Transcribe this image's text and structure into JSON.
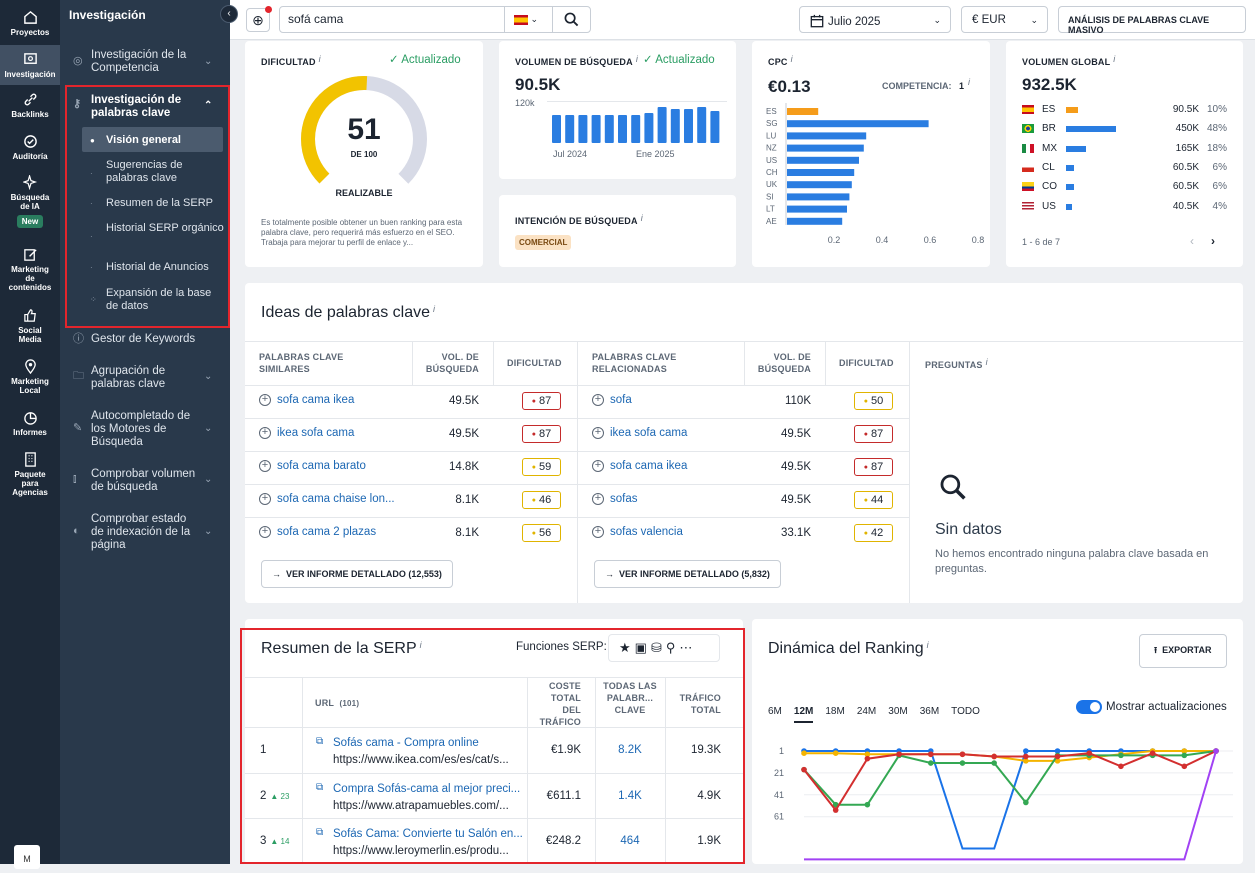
{
  "rail": {
    "items": [
      "Proyectos",
      "Investigación",
      "Backlinks",
      "Auditoría",
      "Búsqueda de IA",
      "Marketing de contenidos",
      "Social Media",
      "Marketing Local",
      "Informes",
      "Paquete para Agencias"
    ],
    "new_badge": "New",
    "avatar": "M"
  },
  "sidebar": {
    "title": "Investigación",
    "competencia": "Investigación de la Competencia",
    "palabras": "Investigación de palabras clave",
    "subs": [
      "Visión general",
      "Sugerencias de palabras clave",
      "Resumen de la SERP",
      "Historial SERP orgánico",
      "Historial de Anuncios",
      "Expansión de la base de datos"
    ],
    "gestor": "Gestor de Keywords",
    "agrupacion": "Agrupación de palabras clave",
    "autocompletado": "Autocompletado de los Motores de Búsqueda",
    "volumen": "Comprobar volumen de búsqueda",
    "indexacion": "Comprobar estado de indexación de la página"
  },
  "topbar": {
    "query": "sofá cama",
    "month": "Julio 2025",
    "currency": "€ EUR",
    "bulk": "ANÁLISIS DE PALABRAS CLAVE MASIVO"
  },
  "dificultad": {
    "label": "DIFICULTAD",
    "updated": "Actualizado",
    "score": "51",
    "de": "DE 100",
    "level": "REALIZABLE",
    "desc": "Es totalmente posible obtener un buen ranking para esta palabra clave, pero requerirá más esfuerzo en el SEO. Trabaja para mejorar tu perfil de enlace y...",
    "fraction": 0.51
  },
  "volumen": {
    "label": "VOLUMEN DE BÚSQUEDA",
    "updated": "Actualizado",
    "value": "90.5K",
    "ytick": "120k",
    "x1": "Jul 2024",
    "x2": "Ene 2025",
    "bars": [
      0.7,
      0.7,
      0.7,
      0.7,
      0.7,
      0.7,
      0.7,
      0.75,
      0.9,
      0.85,
      0.85,
      0.9,
      0.8
    ]
  },
  "intencion": {
    "label": "INTENCIÓN DE BÚSQUEDA",
    "tag": "COMERCIAL"
  },
  "cpc": {
    "label": "CPC",
    "value": "€0.13",
    "comp_label": "COMPETENCIA:",
    "comp_value": "1",
    "countries": [
      "ES",
      "SG",
      "LU",
      "NZ",
      "US",
      "CH",
      "UK",
      "SI",
      "LT",
      "AE"
    ],
    "values": [
      0.13,
      0.59,
      0.33,
      0.32,
      0.3,
      0.28,
      0.27,
      0.26,
      0.25,
      0.23
    ],
    "xticks": [
      "0.2",
      "0.4",
      "0.6",
      "0.8"
    ]
  },
  "global": {
    "label": "VOLUMEN GLOBAL",
    "value": "932.5K",
    "rows": [
      {
        "code": "ES",
        "vol": "90.5K",
        "pct": "10%",
        "f": 0.1
      },
      {
        "code": "BR",
        "vol": "450K",
        "pct": "48%",
        "f": 0.48
      },
      {
        "code": "MX",
        "vol": "165K",
        "pct": "18%",
        "f": 0.18
      },
      {
        "code": "CL",
        "vol": "60.5K",
        "pct": "6%",
        "f": 0.06
      },
      {
        "code": "CO",
        "vol": "60.5K",
        "pct": "6%",
        "f": 0.06
      },
      {
        "code": "US",
        "vol": "40.5K",
        "pct": "4%",
        "f": 0.04
      }
    ],
    "pager": "1 - 6 de 7"
  },
  "ideas": {
    "title": "Ideas de palabras clave",
    "h1": "PALABRAS CLAVE SIMILARES",
    "h2": "PALABRAS CLAVE RELACIONADAS",
    "hvol": "VOL. DE BÚSQUEDA",
    "hdif": "DIFICULTAD",
    "hpreg": "PREGUNTAS",
    "similares": [
      {
        "kw": "sofa cama ikea",
        "vol": "49.5K",
        "kd": "87",
        "c": "red"
      },
      {
        "kw": "ikea sofa cama",
        "vol": "49.5K",
        "kd": "87",
        "c": "red"
      },
      {
        "kw": "sofa cama barato",
        "vol": "14.8K",
        "kd": "59",
        "c": "yel"
      },
      {
        "kw": "sofa cama chaise lon...",
        "vol": "8.1K",
        "kd": "46",
        "c": "yel"
      },
      {
        "kw": "sofa cama 2 plazas",
        "vol": "8.1K",
        "kd": "56",
        "c": "yel"
      }
    ],
    "relacionadas": [
      {
        "kw": "sofa",
        "vol": "110K",
        "kd": "50",
        "c": "yel"
      },
      {
        "kw": "ikea sofa cama",
        "vol": "49.5K",
        "kd": "87",
        "c": "red"
      },
      {
        "kw": "sofa cama ikea",
        "vol": "49.5K",
        "kd": "87",
        "c": "red"
      },
      {
        "kw": "sofas",
        "vol": "49.5K",
        "kd": "44",
        "c": "yel"
      },
      {
        "kw": "sofas valencia",
        "vol": "33.1K",
        "kd": "42",
        "c": "yel"
      }
    ],
    "btn1": "VER INFORME DETALLADO (12,553)",
    "btn2": "VER INFORME DETALLADO (5,832)",
    "nodata": "Sin datos",
    "nodata_desc": "No hemos encontrado ninguna palabra clave basada en preguntas."
  },
  "serp": {
    "title": "Resumen de la SERP",
    "funciones": "Funciones SERP:",
    "h_url": "URL",
    "h_count": "(101)",
    "h_coste": "COSTE TOTAL DEL TRÁFICO",
    "h_todas": "TODAS LAS PALABR... CLAVE",
    "h_trafico": "TRÁFICO TOTAL",
    "rows": [
      {
        "pos": "1",
        "delta": "",
        "title": "Sofás cama - Compra online",
        "url": "https://www.ikea.com/es/es/cat/s...",
        "coste": "€1.9K",
        "kw": "8.2K",
        "traf": "19.3K"
      },
      {
        "pos": "2",
        "delta": "▲ 23",
        "title": "Compra Sofás-cama al mejor preci...",
        "url": "https://www.atrapamuebles.com/...",
        "coste": "€611.1",
        "kw": "1.4K",
        "traf": "4.9K"
      },
      {
        "pos": "3",
        "delta": "▲ 14",
        "title": "Sofás Cama: Convierte tu Salón en...",
        "url": "https://www.leroymerlin.es/produ...",
        "coste": "€248.2",
        "kw": "464",
        "traf": "1.9K"
      }
    ]
  },
  "ranking": {
    "title": "Dinámica del Ranking",
    "export": "EXPORTAR",
    "tabs": [
      "6M",
      "12M",
      "18M",
      "24M",
      "30M",
      "36M",
      "TODO"
    ],
    "toggle": "Mostrar actualizaciones",
    "yticks": [
      "1",
      "21",
      "41",
      "61"
    ],
    "series": [
      {
        "color": "#1a73e8",
        "values": [
          1,
          1,
          1,
          1,
          1,
          90,
          90,
          1,
          1,
          1,
          1,
          1,
          1,
          1
        ]
      },
      {
        "color": "#f4b400",
        "values": [
          3,
          3,
          4,
          4,
          4,
          4,
          6,
          10,
          10,
          7,
          4,
          1,
          1,
          1
        ]
      },
      {
        "color": "#34a853",
        "values": [
          18,
          50,
          50,
          5,
          12,
          12,
          12,
          48,
          5,
          5,
          5,
          5,
          5,
          1
        ]
      },
      {
        "color": "#d32f2f",
        "values": [
          18,
          55,
          8,
          4,
          4,
          4,
          6,
          6,
          6,
          3,
          15,
          3,
          15,
          1
        ]
      },
      {
        "color": "#a142f4",
        "values": [
          100,
          100,
          100,
          100,
          100,
          100,
          100,
          100,
          100,
          100,
          100,
          100,
          100,
          1
        ]
      }
    ]
  }
}
